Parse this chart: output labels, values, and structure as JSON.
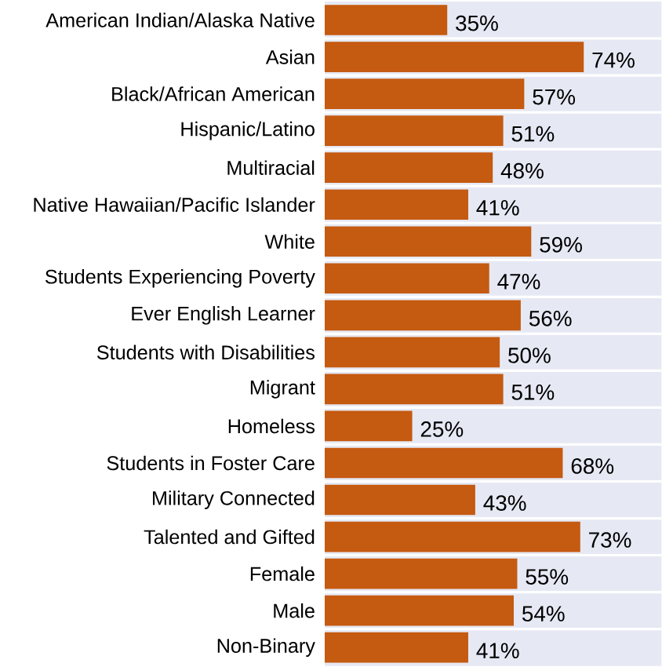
{
  "chart_data": {
    "type": "bar",
    "orientation": "horizontal",
    "color": "#c55a11",
    "categories": [
      "American Indian/Alaska Native",
      "Asian",
      "Black/African American",
      "Hispanic/Latino",
      "Multiracial",
      "Native Hawaiian/Pacific Islander",
      "White",
      "Students Experiencing Poverty",
      "Ever English Learner",
      "Students with Disabilities",
      "Migrant",
      "Homeless",
      "Students in Foster Care",
      "Military Connected",
      "Talented and Gifted",
      "Female",
      "Male",
      "Non-Binary"
    ],
    "values": [
      35,
      74,
      57,
      51,
      48,
      41,
      59,
      47,
      56,
      50,
      51,
      25,
      68,
      43,
      73,
      55,
      54,
      41
    ],
    "value_labels": [
      "35%",
      "74%",
      "57%",
      "51%",
      "48%",
      "41%",
      "59%",
      "47%",
      "56%",
      "50%",
      "51%",
      "25%",
      "68%",
      "43%",
      "73%",
      "55%",
      "54%",
      "41%"
    ]
  }
}
